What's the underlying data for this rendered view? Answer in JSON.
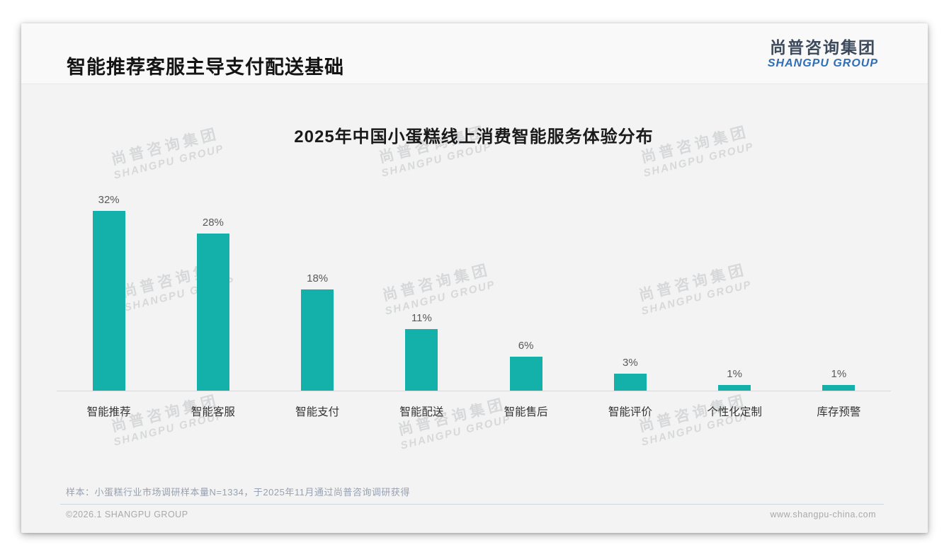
{
  "page": {
    "title": "智能推荐客服主导支付配送基础",
    "logo": {
      "cn": "尚普咨询集团",
      "en": "SHANGPU GROUP"
    },
    "watermark": {
      "cn": "尚普咨询集团",
      "en": "SHANGPU GROUP"
    },
    "footnote": "样本：小蛋糕行业市场调研样本量N=1334，于2025年11月通过尚普咨询调研获得",
    "footer": {
      "copyright": "©2026.1 SHANGPU GROUP",
      "website": "www.shangpu-china.com"
    }
  },
  "chart_data": {
    "type": "bar",
    "title": "2025年中国小蛋糕线上消费智能服务体验分布",
    "categories": [
      "智能推荐",
      "智能客服",
      "智能支付",
      "智能配送",
      "智能售后",
      "智能评价",
      "个性化定制",
      "库存预警"
    ],
    "values": [
      32,
      28,
      18,
      11,
      6,
      3,
      1,
      1
    ],
    "value_labels": [
      "32%",
      "28%",
      "18%",
      "11%",
      "6%",
      "3%",
      "1%",
      "1%"
    ],
    "unit": "%",
    "bar_color": "#13b1a9",
    "axis_color": "#d9d9d9",
    "ylim": [
      0,
      34
    ],
    "grid": false,
    "legend": false,
    "xlabel": "",
    "ylabel": ""
  }
}
